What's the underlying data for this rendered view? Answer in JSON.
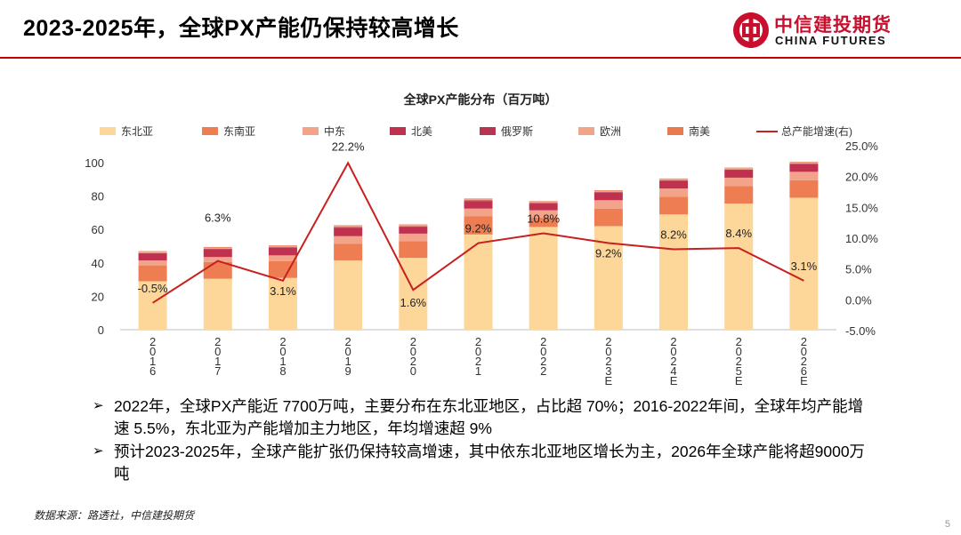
{
  "header": {
    "title": "2023-2025年，全球PX产能仍保持较高增长",
    "logo_cn": "中信建投期货",
    "logo_en": "CHINA FUTURES"
  },
  "colors": {
    "accent": "#c00000",
    "东北亚": "#fdd69a",
    "东南亚": "#ee7d52",
    "中东": "#f2a389",
    "北美": "#c0304f",
    "俄罗斯": "#b63550",
    "欧洲": "#f0a48a",
    "南美": "#ea7a4e",
    "line": "#c81f1f"
  },
  "chart_data": {
    "type": "bar",
    "stacked": true,
    "title": "全球PX产能分布（百万吨）",
    "categories": [
      "2016",
      "2017",
      "2018",
      "2019",
      "2020",
      "2021",
      "2022",
      "2023E",
      "2024E",
      "2025E",
      "2026E"
    ],
    "series": [
      {
        "name": "东北亚",
        "values": [
          29,
          30.5,
          31,
          41.5,
          43,
          57,
          61.5,
          62,
          69,
          75.5,
          79
        ]
      },
      {
        "name": "东南亚",
        "values": [
          9.5,
          10,
          10,
          10,
          10,
          11,
          5.5,
          10.5,
          10.5,
          10.5,
          10.5
        ]
      },
      {
        "name": "中东",
        "values": [
          3,
          3,
          3.5,
          4.5,
          4.5,
          4.5,
          4.5,
          5,
          5,
          5,
          5
        ]
      },
      {
        "name": "北美",
        "values": [
          4,
          4.5,
          4.5,
          5,
          4,
          4.5,
          4,
          4.5,
          4.5,
          4.5,
          4.5
        ]
      },
      {
        "name": "俄罗斯",
        "values": [
          0.4,
          0.4,
          0.4,
          0.4,
          0.4,
          0.4,
          0.4,
          0.4,
          0.4,
          0.4,
          0.4
        ]
      },
      {
        "name": "欧洲",
        "values": [
          0.8,
          0.8,
          0.8,
          0.8,
          0.8,
          0.8,
          0.8,
          0.8,
          0.8,
          0.8,
          0.8
        ]
      },
      {
        "name": "南美",
        "values": [
          0.3,
          0.3,
          0.3,
          0.3,
          0.3,
          0.3,
          0.3,
          0.3,
          0.3,
          0.3,
          0.3
        ]
      }
    ],
    "line_series": {
      "name": "总产能增速(右)",
      "axis": "right",
      "values": [
        -0.5,
        6.3,
        3.1,
        22.2,
        1.6,
        9.2,
        10.8,
        9.2,
        8.2,
        8.4,
        3.1
      ],
      "labels": [
        "-0.5%",
        "6.3%",
        "3.1%",
        "22.2%",
        "1.6%",
        "9.2%",
        "10.8%",
        "9.2%",
        "8.2%",
        "8.4%",
        "3.1%"
      ]
    },
    "ylim": [
      0,
      100
    ],
    "y_ticks": [
      "0",
      "20",
      "40",
      "60",
      "80",
      "100"
    ],
    "y2lim": [
      -5,
      25
    ],
    "y2_ticks": [
      "-5.0%",
      "0.0%",
      "5.0%",
      "10.0%",
      "15.0%",
      "20.0%",
      "25.0%"
    ],
    "legend_position": "top",
    "grid": false
  },
  "bullets": [
    "2022年，全球PX产能近 7700万吨，主要分布在东北亚地区，占比超 70%；2016-2022年间，全球年均产能增速 5.5%，东北亚为产能增加主力地区，年均增速超 9%",
    "预计2023-2025年，全球产能扩张仍保持较高增速，其中依东北亚地区增长为主，2026年全球产能将超9000万吨"
  ],
  "bullet_marker": "➢",
  "footer": {
    "source": "数据来源：路透社，中信建投期货",
    "page_number": "5"
  }
}
